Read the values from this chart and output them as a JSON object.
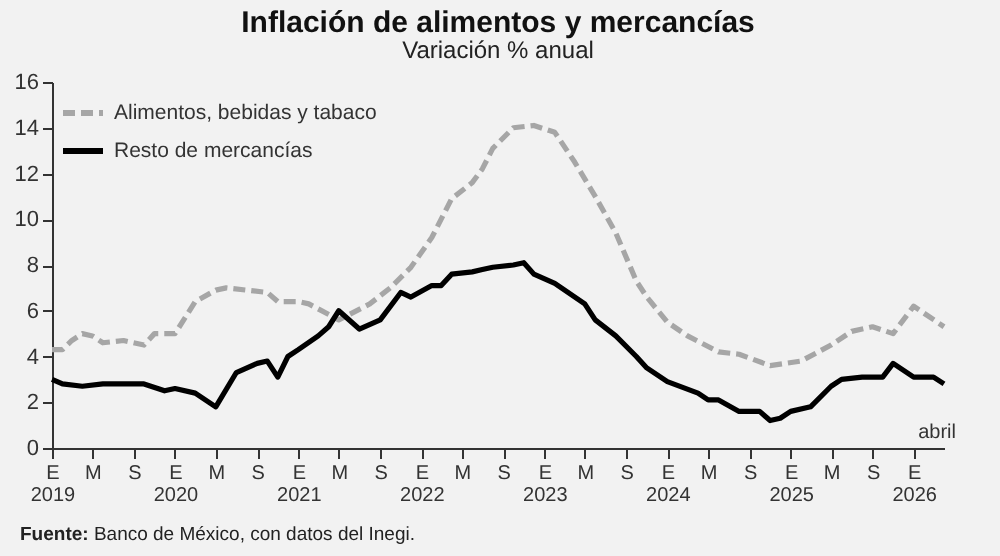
{
  "chart_data": {
    "type": "line",
    "title": "Inflación de alimentos y mercancías",
    "subtitle": "Variación % anual",
    "annotations": [
      "Fuente: Banco de México, con datos del Inegi.",
      "abril"
    ],
    "xlim": [
      "2019-01",
      "2026-04"
    ],
    "xticks": [
      {
        "value": "2019-01",
        "label": "E\n2019"
      },
      {
        "value": "2019-05",
        "label": "M"
      },
      {
        "value": "2019-09",
        "label": "S"
      },
      {
        "value": "2020-01",
        "label": "E\n2020"
      },
      {
        "value": "2020-05",
        "label": "M"
      },
      {
        "value": "2020-09",
        "label": "S"
      },
      {
        "value": "2021-01",
        "label": "E\n2021"
      },
      {
        "value": "2021-05",
        "label": "M"
      },
      {
        "value": "2021-09",
        "label": "S"
      },
      {
        "value": "2022-01",
        "label": "E\n2022"
      },
      {
        "value": "2022-05",
        "label": "M"
      },
      {
        "value": "2022-09",
        "label": "S"
      },
      {
        "value": "2023-01",
        "label": "E\n2023"
      },
      {
        "value": "2023-05",
        "label": "M"
      },
      {
        "value": "2023-09",
        "label": "S"
      },
      {
        "value": "2024-01",
        "label": "E\n2024"
      },
      {
        "value": "2024-05",
        "label": "M"
      },
      {
        "value": "2024-09",
        "label": "S"
      },
      {
        "value": "2025-01",
        "label": "E\n2025"
      },
      {
        "value": "2025-05",
        "label": "M"
      },
      {
        "value": "2025-09",
        "label": "S"
      },
      {
        "value": "2026-01",
        "label": "E\n2026"
      }
    ],
    "ylim": [
      0,
      16
    ],
    "yticks": [
      0,
      2,
      4,
      6,
      8,
      10,
      12,
      14,
      16
    ],
    "grid": false,
    "legend": "top left",
    "series": [
      {
        "name": "Alimentos, bebidas y tabaco",
        "color": "#a6a6a6",
        "line_style": "dashed",
        "x": [
          "2019-01",
          "2019-02",
          "2019-03",
          "2019-04",
          "2019-05",
          "2019-06",
          "2019-08",
          "2019-10",
          "2019-11",
          "2020-01",
          "2020-03",
          "2020-05",
          "2020-06",
          "2020-08",
          "2020-10",
          "2020-11",
          "2021-01",
          "2021-02",
          "2021-05",
          "2021-08",
          "2021-10",
          "2021-12",
          "2022-02",
          "2022-04",
          "2022-06",
          "2022-07",
          "2022-08",
          "2022-10",
          "2022-12",
          "2023-02",
          "2023-04",
          "2023-06",
          "2023-08",
          "2023-10",
          "2023-11",
          "2024-01",
          "2024-03",
          "2024-06",
          "2024-08",
          "2024-11",
          "2025-02",
          "2025-05",
          "2025-07",
          "2025-09",
          "2025-11",
          "2026-01",
          "2026-04"
        ],
        "values": [
          4.3,
          4.3,
          4.7,
          5.0,
          4.9,
          4.6,
          4.7,
          4.5,
          5.0,
          5.0,
          6.4,
          6.9,
          7.0,
          6.9,
          6.8,
          6.4,
          6.4,
          6.3,
          5.6,
          6.3,
          7.0,
          7.9,
          9.2,
          10.9,
          11.6,
          12.2,
          13.1,
          14.0,
          14.1,
          13.8,
          12.5,
          11.0,
          9.4,
          7.3,
          6.6,
          5.5,
          4.9,
          4.2,
          4.1,
          3.6,
          3.8,
          4.5,
          5.1,
          5.3,
          5.0,
          6.2,
          5.3
        ]
      },
      {
        "name": "Resto de mercancías",
        "color": "#000000",
        "line_style": "solid",
        "x": [
          "2019-01",
          "2019-02",
          "2019-04",
          "2019-06",
          "2019-08",
          "2019-10",
          "2019-12",
          "2020-01",
          "2020-03",
          "2020-05",
          "2020-07",
          "2020-09",
          "2020-10",
          "2020-11",
          "2020-12",
          "2021-01",
          "2021-03",
          "2021-04",
          "2021-05",
          "2021-07",
          "2021-09",
          "2021-11",
          "2021-12",
          "2022-02",
          "2022-03",
          "2022-04",
          "2022-06",
          "2022-07",
          "2022-08",
          "2022-10",
          "2022-11",
          "2022-12",
          "2023-02",
          "2023-05",
          "2023-06",
          "2023-08",
          "2023-10",
          "2023-11",
          "2024-01",
          "2024-04",
          "2024-05",
          "2024-06",
          "2024-08",
          "2024-10",
          "2024-11",
          "2024-12",
          "2025-01",
          "2025-03",
          "2025-05",
          "2025-06",
          "2025-08",
          "2025-10",
          "2025-11",
          "2026-01",
          "2026-03",
          "2026-04"
        ],
        "values": [
          3.0,
          2.8,
          2.7,
          2.8,
          2.8,
          2.8,
          2.5,
          2.6,
          2.4,
          1.8,
          3.3,
          3.7,
          3.8,
          3.1,
          4.0,
          4.3,
          4.9,
          5.3,
          6.0,
          5.2,
          5.6,
          6.8,
          6.6,
          7.1,
          7.1,
          7.6,
          7.7,
          7.8,
          7.9,
          8.0,
          8.1,
          7.6,
          7.2,
          6.3,
          5.6,
          4.9,
          4.0,
          3.5,
          2.9,
          2.4,
          2.1,
          2.1,
          1.6,
          1.6,
          1.2,
          1.3,
          1.6,
          1.8,
          2.7,
          3.0,
          3.1,
          3.1,
          3.7,
          3.1,
          3.1,
          2.8
        ]
      }
    ]
  }
}
